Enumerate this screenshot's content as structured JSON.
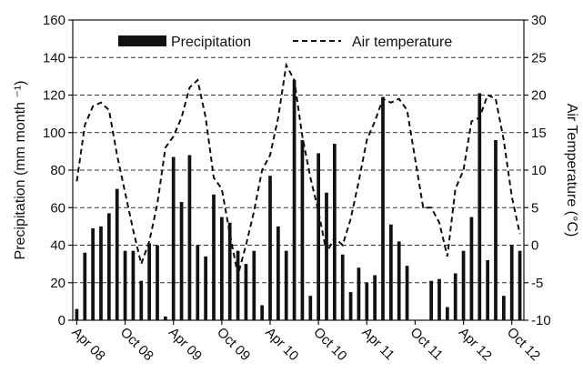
{
  "chart_data": {
    "type": "bar",
    "x_tick_labels": [
      "Apr 08",
      "Oct 08",
      "Apr 09",
      "Oct 09",
      "Apr 10",
      "Oct 10",
      "Apr 11",
      "Oct 11",
      "Apr 12",
      "Oct 12"
    ],
    "ylabel_left": "Precipitation (mm month ⁻¹)",
    "ylabel_right": "Air Temperature (°C)",
    "ylim_left": [
      0,
      160
    ],
    "ylim_right": [
      -10,
      30
    ],
    "yticks_left": [
      0,
      20,
      40,
      60,
      80,
      100,
      120,
      140,
      160
    ],
    "yticks_right": [
      -10,
      -5,
      0,
      5,
      10,
      15,
      20,
      25,
      30
    ],
    "grid": "horizontal dashed",
    "legend_placement": "top",
    "series": [
      {
        "name": "Precipitation",
        "kind": "bar",
        "color": "#111111",
        "values": [
          6,
          36,
          49,
          50,
          57,
          70,
          37,
          37,
          21,
          41,
          40,
          2,
          87,
          63,
          88,
          40,
          34,
          67,
          55,
          52,
          37,
          30,
          37,
          8,
          77,
          50,
          37,
          128,
          96,
          13,
          89,
          68,
          94,
          35,
          15,
          28,
          20,
          24,
          119,
          51,
          42,
          29,
          0,
          0,
          21,
          22,
          7,
          25,
          37,
          55,
          121,
          32,
          96,
          13,
          40,
          37
        ]
      },
      {
        "name": "Air temperature",
        "kind": "line",
        "style": "dashed",
        "color": "#111111",
        "values": [
          8.5,
          16,
          18.5,
          19,
          18,
          12,
          7,
          2,
          -2.5,
          0.5,
          5.5,
          13,
          14.5,
          17,
          21,
          22,
          17,
          9,
          7.5,
          1.5,
          -4,
          0,
          4.5,
          10,
          12,
          17,
          24,
          22,
          14.5,
          9,
          4.5,
          -1,
          1,
          0,
          3.5,
          8.5,
          14,
          16.5,
          19.5,
          19,
          19.5,
          18,
          11.5,
          5,
          5,
          3,
          -1.5,
          7.5,
          10,
          16.5,
          17,
          20,
          19.5,
          14,
          6.5,
          1.5
        ]
      }
    ]
  }
}
